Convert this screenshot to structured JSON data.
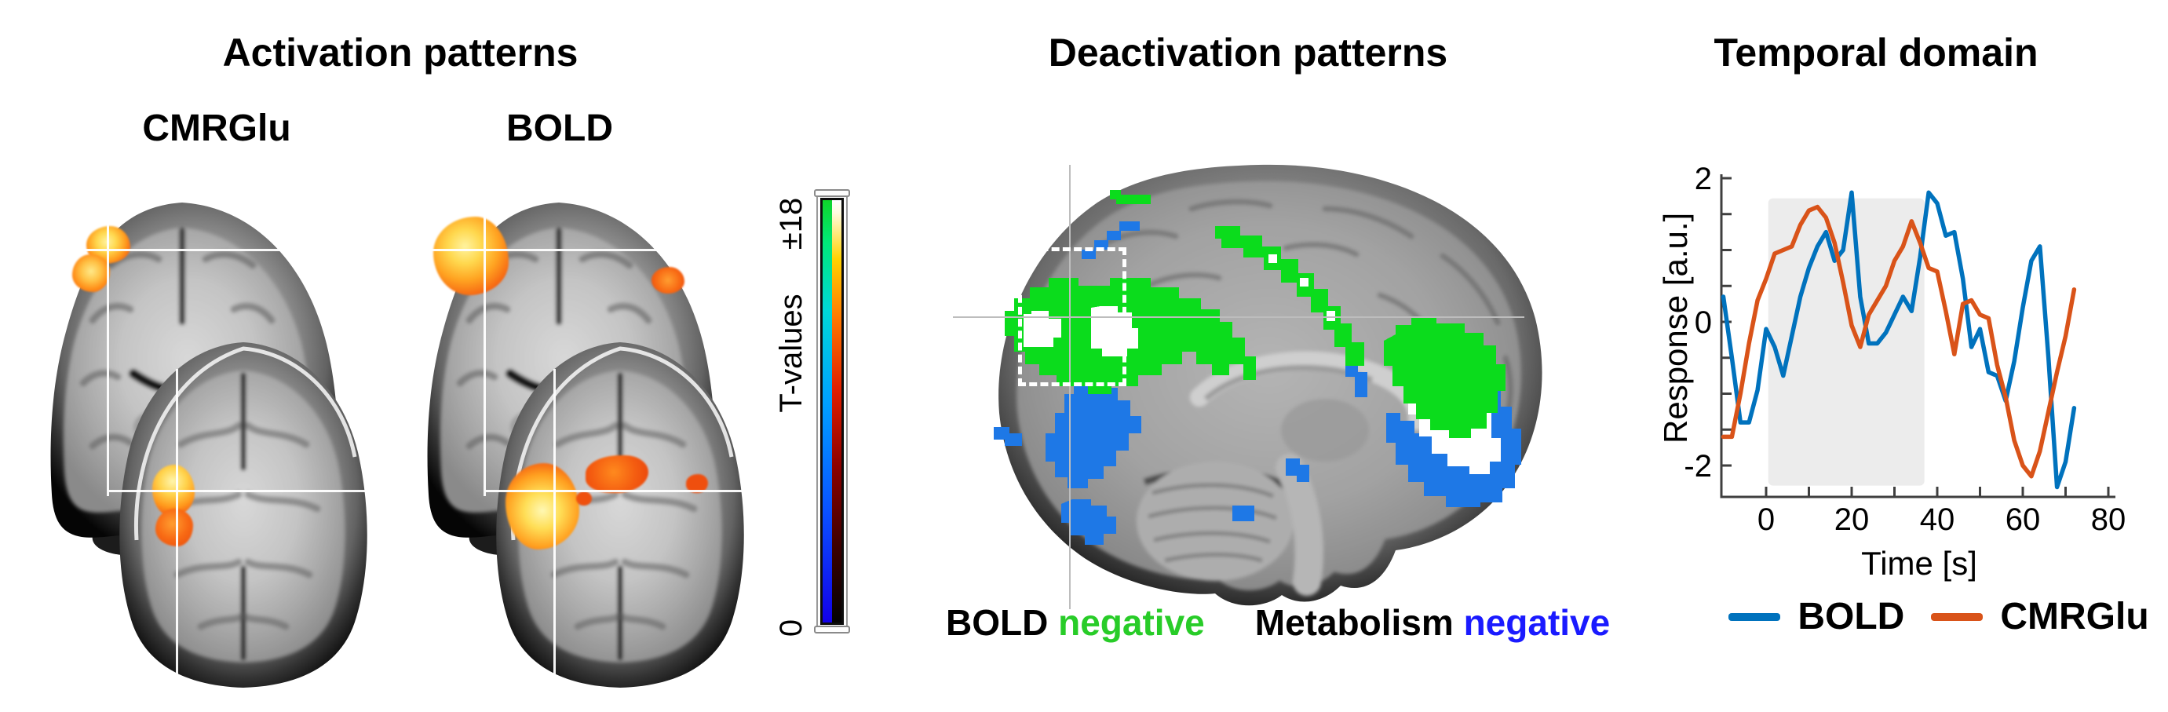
{
  "figure": {
    "activation": {
      "title": "Activation patterns",
      "maps": [
        {
          "label": "CMRGlu"
        },
        {
          "label": "BOLD"
        }
      ],
      "colorbar": {
        "max_label": "±18",
        "axis_label": "T-values",
        "min_label": "0",
        "positive_colormap": [
          "#000000",
          "#8c0000",
          "#e11e00",
          "#ff7800",
          "#ffd200",
          "#ffffff"
        ],
        "negative_colormap": [
          "#1200e8",
          "#0a50ff",
          "#00a0ff",
          "#00d8d8",
          "#0fd42a"
        ]
      }
    },
    "deactivation": {
      "title": "Deactivation patterns",
      "legend": {
        "item1_modality": "BOLD",
        "item1_word": "negative",
        "item1_color": "#28cc28",
        "item2_modality": "Metabolism",
        "item2_word": "negative",
        "item2_color": "#1a1aff"
      },
      "overlay_colors": {
        "bold_negative": "#0bdc1c",
        "metabolism_negative": "#1e78e6",
        "overlap": "#ffffff"
      }
    },
    "temporal": {
      "title": "Temporal domain",
      "ylabel": "Response [a.u.]",
      "xlabel": "Time [s]"
    }
  },
  "chart_data": {
    "type": "line",
    "title": "Temporal domain",
    "xlabel": "Time [s]",
    "ylabel": "Response [a.u.]",
    "xlim": [
      -11,
      80
    ],
    "ylim": [
      -2.6,
      2
    ],
    "xticks": [
      0,
      20,
      40,
      60,
      80
    ],
    "yticks": [
      2,
      0,
      -2
    ],
    "grid": false,
    "legend_position": "below",
    "stim_block": {
      "t_start": 0.5,
      "t_end": 37,
      "v_top": 1.72,
      "v_bottom": -2.28,
      "color": "#ececec"
    },
    "x": [
      -10,
      -8,
      -6,
      -4,
      -2,
      0,
      2,
      4,
      6,
      8,
      10,
      12,
      14,
      16,
      18,
      20,
      22,
      24,
      26,
      28,
      30,
      32,
      34,
      36,
      38,
      40,
      42,
      44,
      46,
      48,
      50,
      52,
      54,
      56,
      58,
      60,
      62,
      64,
      66,
      68,
      70,
      72
    ],
    "series": [
      {
        "name": "BOLD",
        "color": "#0072BD",
        "values": [
          0.35,
          -0.5,
          -1.4,
          -1.4,
          -0.95,
          -0.1,
          -0.35,
          -0.75,
          -0.2,
          0.35,
          0.75,
          1.05,
          1.25,
          0.85,
          1.0,
          1.8,
          0.35,
          -0.3,
          -0.3,
          -0.15,
          0.1,
          0.35,
          0.15,
          0.9,
          1.8,
          1.65,
          1.2,
          1.25,
          0.6,
          -0.35,
          -0.1,
          -0.7,
          -0.75,
          -1.1,
          -0.55,
          0.2,
          0.85,
          1.05,
          -0.5,
          -2.3,
          -1.95,
          -1.2
        ]
      },
      {
        "name": "CMRGlu",
        "color": "#D95319",
        "values": [
          -1.6,
          -1.6,
          -1.0,
          -0.3,
          0.3,
          0.6,
          0.95,
          1.0,
          1.05,
          1.35,
          1.55,
          1.6,
          1.45,
          1.1,
          0.55,
          -0.05,
          -0.35,
          0.1,
          0.3,
          0.5,
          0.85,
          1.05,
          1.4,
          1.1,
          0.75,
          0.7,
          0.15,
          -0.45,
          0.25,
          0.3,
          0.1,
          0.05,
          -0.6,
          -1.05,
          -1.65,
          -2.0,
          -2.15,
          -1.8,
          -1.25,
          -0.7,
          -0.2,
          0.45
        ]
      }
    ]
  }
}
